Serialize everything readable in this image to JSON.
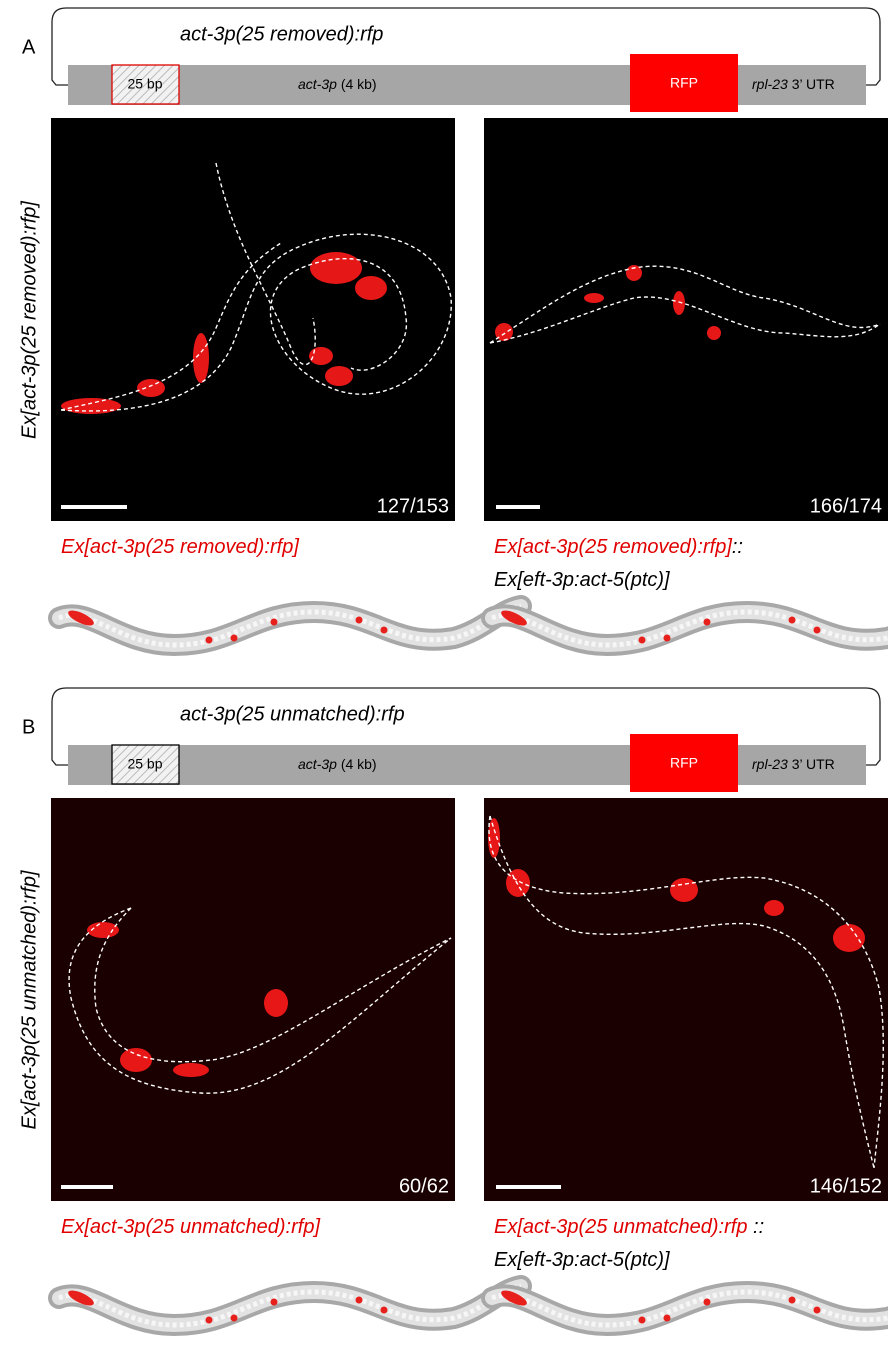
{
  "panels": [
    {
      "label": "A",
      "construct": {
        "title": "act-3p(25 removed):rfp",
        "insert": "25 bp",
        "promoter": "act-3p",
        "promoter_size": "(4 kb)",
        "reporter": "RFP",
        "utr_gene": "rpl-23",
        "utr_suffix": "3’ UTR",
        "insert_border": "#e00000"
      },
      "side_label": "Ex[act-3p(25 removed):rfp]",
      "image_background": "#000000",
      "images": [
        {
          "count": "127/153",
          "caption": [
            [
              {
                "text": "Ex[act-3p(25 removed):rfp]",
                "color": "#e00000"
              }
            ]
          ]
        },
        {
          "count": "166/174",
          "caption": [
            [
              {
                "text": "Ex[act-3p(25 removed):rfp]",
                "color": "#e00000"
              },
              {
                "text": "::",
                "color": "#000000"
              }
            ],
            [
              {
                "text": "Ex[eft-3p:act-5(ptc)]",
                "color": "#000000"
              }
            ]
          ]
        }
      ]
    },
    {
      "label": "B",
      "construct": {
        "title": "act-3p(25 unmatched):rfp",
        "insert": "25 bp",
        "promoter": "act-3p",
        "promoter_size": "(4 kb)",
        "reporter": "RFP",
        "utr_gene": "rpl-23",
        "utr_suffix": "3’ UTR",
        "insert_border": "#000000"
      },
      "side_label": "Ex[act-3p(25 unmatched):rfp]",
      "image_background": "#1a0000",
      "images": [
        {
          "count": "60/62",
          "caption": [
            [
              {
                "text": "Ex[act-3p(25 unmatched):rfp]",
                "color": "#e00000"
              }
            ]
          ]
        },
        {
          "count": "146/152",
          "caption": [
            [
              {
                "text": "Ex[act-3p(25 unmatched):rfp",
                "color": "#e00000"
              },
              {
                "text": " ::",
                "color": "#000000"
              }
            ],
            [
              {
                "text": "Ex[eft-3p:act-5(ptc)]",
                "color": "#000000"
              }
            ]
          ]
        }
      ]
    }
  ]
}
